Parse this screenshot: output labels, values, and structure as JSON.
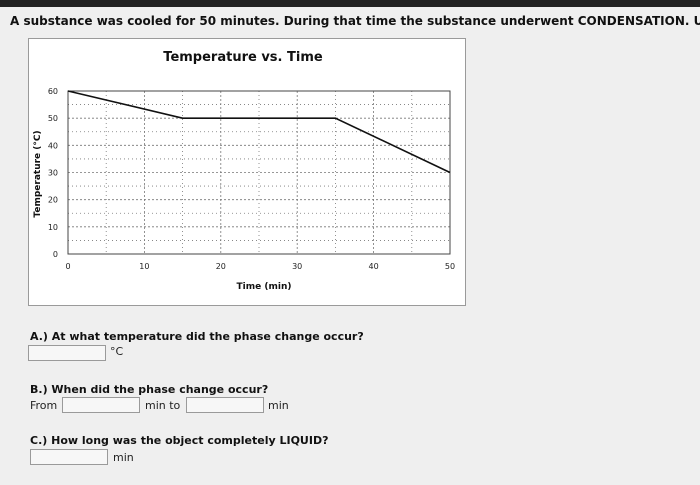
{
  "intro_text": "A substance was cooled for 50 minutes. During that time the substance underwent CONDENSATION. Use t",
  "chart_data": {
    "type": "line",
    "title": "Temperature vs. Time",
    "xlabel": "Time (min)",
    "ylabel": "Temperature (°C)",
    "xlim": [
      0,
      50
    ],
    "ylim": [
      0,
      60
    ],
    "xticks": [
      0,
      10,
      20,
      30,
      40,
      50
    ],
    "yticks": [
      0,
      10,
      20,
      30,
      40,
      50,
      60
    ],
    "grid": true,
    "series": [
      {
        "x": [
          0,
          15,
          35,
          50
        ],
        "y": [
          60,
          50,
          50,
          30
        ]
      }
    ],
    "line_color": "#111111"
  },
  "questions": {
    "a": {
      "text": "A.) At what temperature did the phase change occur?",
      "unit": "°C",
      "value": ""
    },
    "b": {
      "text": "B.) When did the phase change occur?",
      "from_label": "From",
      "to_label": "min to",
      "unit": "min",
      "from_value": "",
      "to_value": ""
    },
    "c": {
      "text": "C.) How long was the object completely LIQUID?",
      "unit": "min",
      "value": ""
    }
  }
}
